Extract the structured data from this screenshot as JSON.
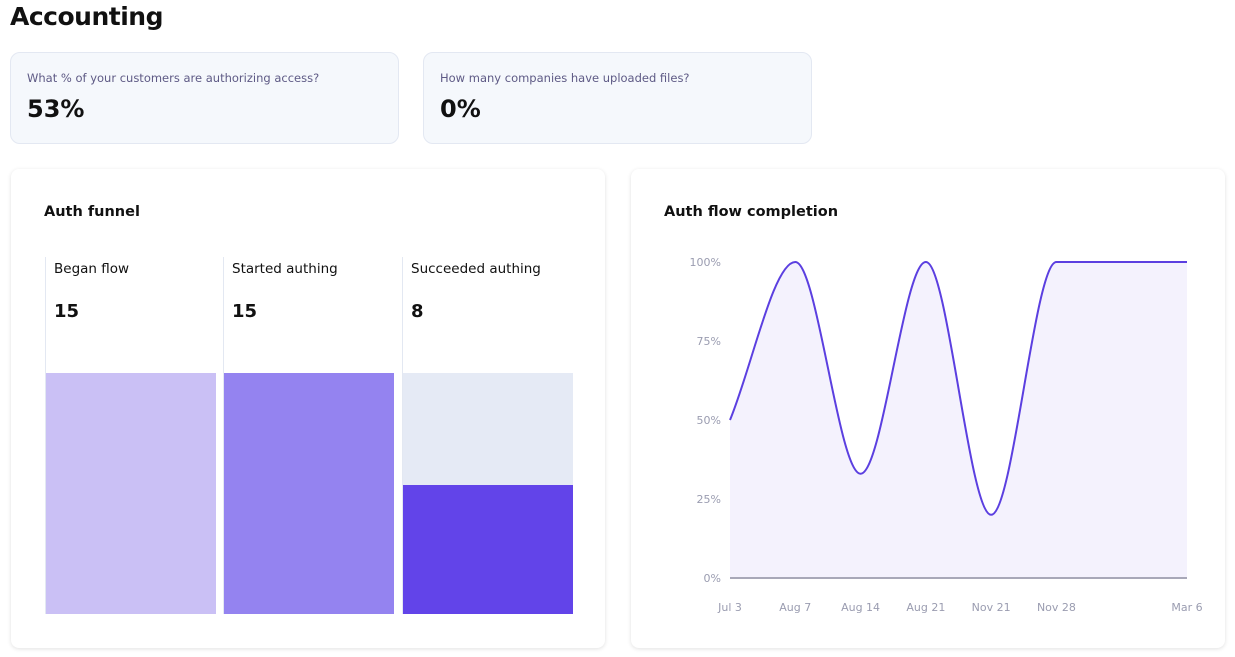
{
  "page": {
    "title": "Accounting"
  },
  "stats": [
    {
      "question": "What % of your customers are authorizing access?",
      "value": "53%"
    },
    {
      "question": "How many companies have uploaded files?",
      "value": "0%"
    }
  ],
  "funnel": {
    "title": "Auth funnel",
    "max": 15,
    "steps": [
      {
        "label": "Began flow",
        "value": "15",
        "count": 15,
        "color": "#cac0f5"
      },
      {
        "label": "Started authing",
        "value": "15",
        "count": 15,
        "color": "#9483f0"
      },
      {
        "label": "Succeeded authing",
        "value": "8",
        "count": 8,
        "color": "#6244e9"
      }
    ],
    "track_color": "#e5eaf5"
  },
  "chart_data": {
    "type": "area",
    "title": "Auth flow completion",
    "categories": [
      "Jul 3",
      "Aug 7",
      "Aug 14",
      "Aug 21",
      "Nov 21",
      "Nov 28",
      "Mar 6"
    ],
    "values": [
      50,
      100,
      33,
      100,
      20,
      100,
      100
    ],
    "yticks": [
      "0%",
      "25%",
      "50%",
      "75%",
      "100%"
    ],
    "ylim": [
      0,
      100
    ],
    "grid": false,
    "line_color": "#5b3fe0",
    "fill_color": "#f4f2fd"
  }
}
